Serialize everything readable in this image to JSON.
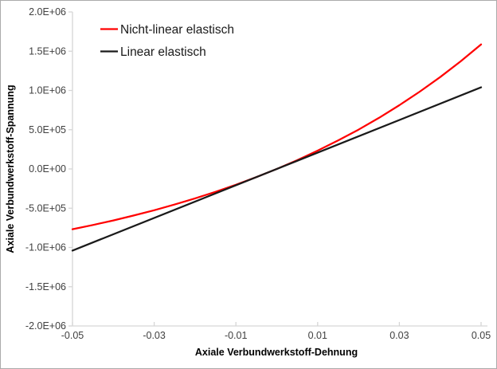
{
  "chart_data": {
    "type": "line",
    "title": "",
    "xlabel": "Axiale Verbundwerkstoff-Dehnung",
    "ylabel": "Axiale Verbundwerkstoff-Spannung",
    "xlim": [
      -0.05,
      0.05
    ],
    "ylim": [
      -2000000,
      2000000
    ],
    "grid": false,
    "legend_position": "top-left-inside",
    "x_ticks": [
      {
        "value": -0.05,
        "label": "-0.05"
      },
      {
        "value": -0.03,
        "label": "-0.03"
      },
      {
        "value": -0.01,
        "label": "-0.01"
      },
      {
        "value": 0.01,
        "label": "0.01"
      },
      {
        "value": 0.03,
        "label": "0.03"
      },
      {
        "value": 0.05,
        "label": "0.05"
      }
    ],
    "y_ticks": [
      {
        "value": 2000000,
        "label": "2.0E+06"
      },
      {
        "value": 1500000,
        "label": "1.5E+06"
      },
      {
        "value": 1000000,
        "label": "1.0E+06"
      },
      {
        "value": 500000,
        "label": "5.0E+05"
      },
      {
        "value": 0,
        "label": "0.0E+00"
      },
      {
        "value": -500000,
        "label": "-5.0E+05"
      },
      {
        "value": -1000000,
        "label": "-1.0E+06"
      },
      {
        "value": -1500000,
        "label": "-1.5E+06"
      },
      {
        "value": -2000000,
        "label": "-2.0E+06"
      }
    ],
    "series": [
      {
        "name": "Nicht-linear elastisch",
        "color": "#ff0000",
        "x": [
          -0.05,
          -0.045,
          -0.04,
          -0.035,
          -0.03,
          -0.025,
          -0.02,
          -0.015,
          -0.01,
          -0.005,
          0,
          0.005,
          0.01,
          0.015,
          0.02,
          0.025,
          0.03,
          0.035,
          0.04,
          0.045,
          0.05
        ],
        "y": [
          -768000,
          -714000,
          -656000,
          -593000,
          -526000,
          -453000,
          -375000,
          -291000,
          -201000,
          -104000,
          0,
          112000,
          233000,
          362000,
          501000,
          651000,
          812000,
          985000,
          1171000,
          1371000,
          1587000
        ]
      },
      {
        "name": "Linear elastisch",
        "color": "#1a1a1a",
        "x": [
          -0.05,
          0.05
        ],
        "y": [
          -1040000,
          1040000
        ]
      }
    ]
  },
  "colors": {
    "axis_line": "#d6d6d6",
    "tick_text": "#404040",
    "title_text": "#1f1f1f",
    "legend_text": "#1a1a1a",
    "border": "#ababab",
    "background": "#ffffff"
  }
}
